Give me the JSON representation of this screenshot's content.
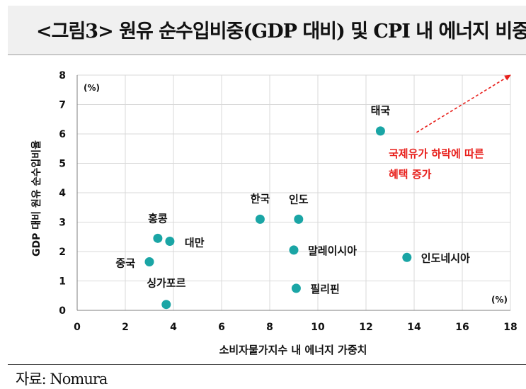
{
  "title": "<그림3> 원유 순수입비중(GDP 대비) 및 CPI 내 에너지 비중",
  "source": "자료: Nomura",
  "chart_data": {
    "type": "scatter",
    "xlabel": "소비자물가지수 내 에너지 가중치",
    "ylabel": "GDP 대비 원유 순수입비율",
    "x_unit": "(%)",
    "y_unit": "(%)",
    "xlim": [
      0,
      18
    ],
    "ylim": [
      0,
      8
    ],
    "x_ticks": [
      "0",
      "2",
      "4",
      "6",
      "8",
      "10",
      "12",
      "14",
      "16",
      "18"
    ],
    "y_ticks": [
      "0",
      "1",
      "2",
      "3",
      "4",
      "5",
      "6",
      "7",
      "8"
    ],
    "grid": true,
    "point_color": "#1aa5a5",
    "points": [
      {
        "label": "태국",
        "x": 12.6,
        "y": 6.1
      },
      {
        "label": "한국",
        "x": 7.6,
        "y": 3.1
      },
      {
        "label": "인도",
        "x": 9.2,
        "y": 3.1
      },
      {
        "label": "홍콩",
        "x": 3.35,
        "y": 2.45
      },
      {
        "label": "대만",
        "x": 3.85,
        "y": 2.35
      },
      {
        "label": "중국",
        "x": 3.0,
        "y": 1.65
      },
      {
        "label": "말레이시아",
        "x": 9.0,
        "y": 2.05
      },
      {
        "label": "인도네시아",
        "x": 13.7,
        "y": 1.8
      },
      {
        "label": "필리핀",
        "x": 9.1,
        "y": 0.75
      },
      {
        "label": "싱가포르",
        "x": 3.7,
        "y": 0.2
      }
    ],
    "annotation": {
      "lines": [
        "국제유가 하락에 따른",
        "혜택 증가"
      ],
      "color": "#e8201c",
      "arrow_from": [
        14.1,
        6.1
      ],
      "arrow_to": [
        18,
        8.0
      ]
    }
  }
}
